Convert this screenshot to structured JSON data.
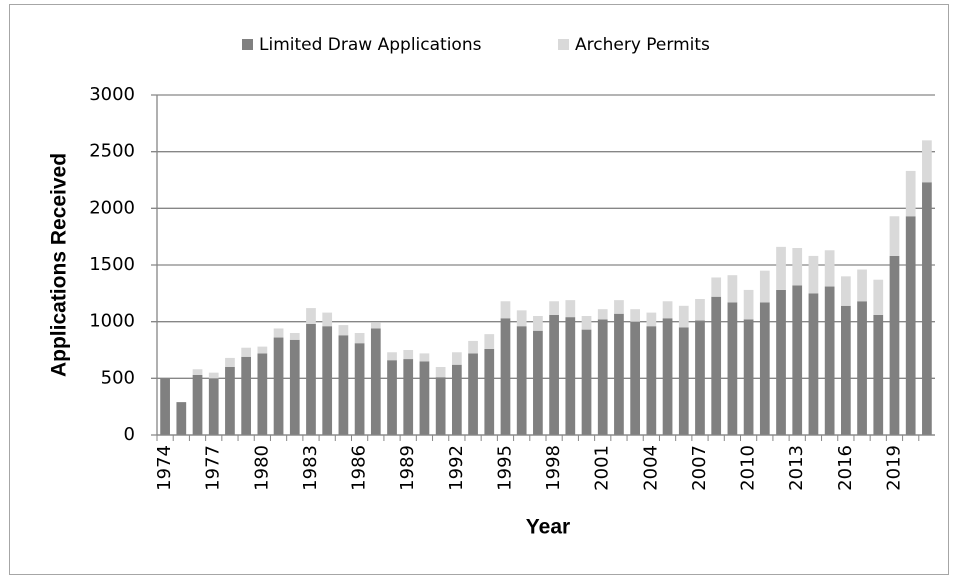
{
  "chart_data": {
    "type": "stacked_bar",
    "x_label": "Year",
    "y_label": "Applications Received",
    "categories": [
      "1974",
      null,
      null,
      "1977",
      null,
      null,
      "1980",
      null,
      null,
      "1983",
      null,
      null,
      "1986",
      null,
      null,
      "1989",
      null,
      null,
      "1992",
      null,
      null,
      "1995",
      null,
      null,
      "1998",
      null,
      null,
      "2001",
      null,
      null,
      "2004",
      null,
      null,
      "2007",
      null,
      null,
      "2010",
      null,
      null,
      "2013",
      null,
      null,
      "2016",
      null,
      null,
      "2019",
      null,
      null
    ],
    "series": [
      {
        "name": "Limited Draw Applications",
        "color": "#808080",
        "values": [
          500,
          290,
          530,
          500,
          600,
          690,
          720,
          860,
          840,
          980,
          960,
          880,
          810,
          940,
          660,
          670,
          650,
          510,
          620,
          720,
          760,
          1030,
          960,
          920,
          1060,
          1040,
          930,
          1020,
          1070,
          1000,
          960,
          1030,
          950,
          1010,
          1220,
          1170,
          1020,
          1170,
          1280,
          1320,
          1250,
          1310,
          1140,
          1180,
          1060,
          1580,
          1930,
          2230
        ]
      },
      {
        "name": "Archery Permits",
        "color": "#d9d9d9",
        "values": [
          0,
          0,
          50,
          50,
          80,
          80,
          60,
          80,
          60,
          140,
          120,
          90,
          90,
          50,
          70,
          80,
          70,
          90,
          110,
          110,
          130,
          150,
          140,
          130,
          120,
          150,
          120,
          90,
          120,
          110,
          120,
          150,
          190,
          190,
          170,
          240,
          260,
          280,
          380,
          330,
          330,
          320,
          260,
          280,
          310,
          350,
          400,
          370
        ]
      }
    ],
    "ylim": [
      0,
      3000
    ],
    "yticks": [
      0,
      500,
      1000,
      1500,
      2000,
      2500,
      3000
    ],
    "grid": true,
    "legend": "top"
  }
}
